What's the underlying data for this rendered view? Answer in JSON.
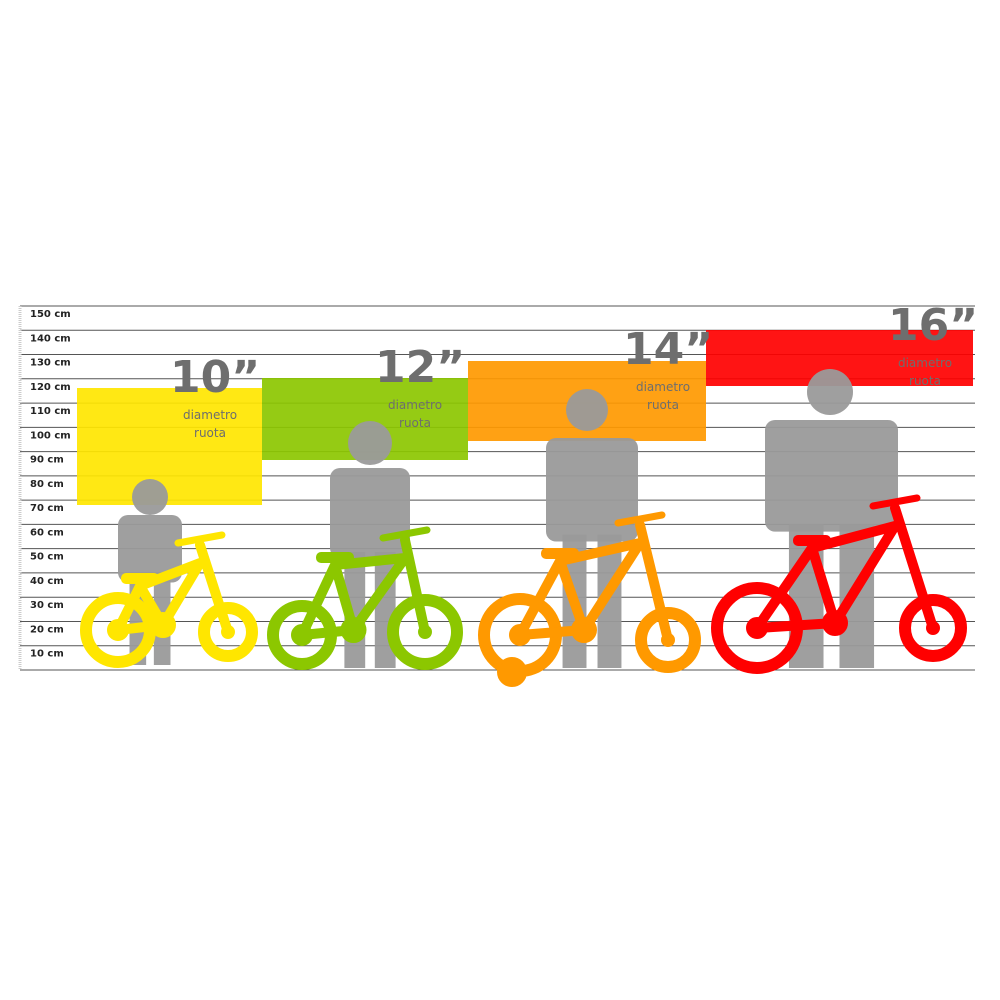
{
  "scale": {
    "unit": "cm",
    "labels": [
      "150 cm",
      "140 cm",
      "130 cm",
      "120 cm",
      "110 cm",
      "100 cm",
      "90 cm",
      "80 cm",
      "70 cm",
      "60 cm",
      "50 cm",
      "40 cm",
      "30 cm",
      "20 cm",
      "10 cm"
    ]
  },
  "sizes": [
    {
      "size": "10”",
      "caption_line1": "diametro",
      "caption_line2": "ruota",
      "color": "#ffe600",
      "height_range_cm": [
        70,
        120
      ]
    },
    {
      "size": "12”",
      "caption_line1": "diametro",
      "caption_line2": "ruota",
      "color": "#8cc700",
      "height_range_cm": [
        90,
        125
      ]
    },
    {
      "size": "14”",
      "caption_line1": "diametro",
      "caption_line2": "ruota",
      "color": "#ff9900",
      "height_range_cm": [
        95,
        130
      ]
    },
    {
      "size": "16”",
      "caption_line1": "diametro",
      "caption_line2": "ruota",
      "color": "#ff0000",
      "height_range_cm": [
        120,
        140
      ]
    }
  ],
  "colors": {
    "silhouette": "#9a9a9a",
    "gridline": "#555555",
    "text": "#6e6e6e"
  }
}
